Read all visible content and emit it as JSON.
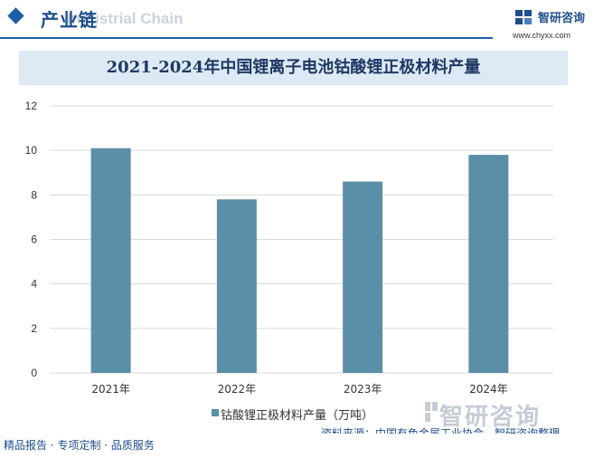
{
  "header": {
    "title": "产业链",
    "subtitle_overlay": "Industrial Chain",
    "brand_name": "智研咨询",
    "brand_url": "www.chyxx.com"
  },
  "colors": {
    "accent": "#1f5fa8",
    "bar": "#5b8fa8",
    "title_band": "#dde9f4"
  },
  "chart_data": {
    "type": "bar",
    "title": "2021-2024年中国锂离子电池钴酸锂正极材料产量",
    "categories": [
      "2021年",
      "2022年",
      "2023年",
      "2024年"
    ],
    "series": [
      {
        "name": "钴酸锂正极材料产量（万吨）",
        "values": [
          10.1,
          7.8,
          8.6,
          9.8
        ]
      }
    ],
    "ylim": [
      0,
      12
    ],
    "yticks": [
      0,
      2,
      4,
      6,
      8,
      10,
      12
    ],
    "grid": true,
    "legend_position": "bottom"
  },
  "footer": {
    "left": "精品报告 · 专项定制 · 品质服务",
    "source": "资料来源：中国有色金属工业协会，智研咨询整理",
    "watermark": "智研咨询"
  }
}
